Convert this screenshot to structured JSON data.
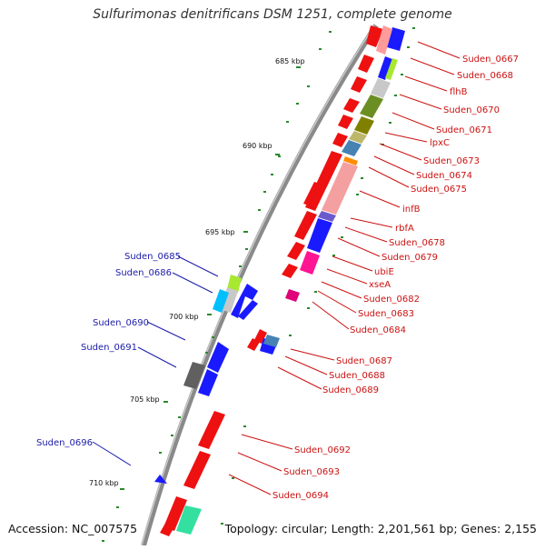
{
  "title": "Sulfurimonas denitrificans DSM 1251, complete genome",
  "accession": "Accession: NC_007575",
  "topology": "Topology: circular; Length: 2,201,561 bp; Genes: 2,155",
  "colors": {
    "right_label": "#cc1111",
    "left_label": "#1a1aaa",
    "backbone": "#808080",
    "tick": "#2a8a2a"
  },
  "ticks": [
    "685 kbp",
    "690 kbp",
    "695 kbp",
    "700 kbp",
    "705 kbp",
    "710 kbp"
  ],
  "right_labels": [
    "Suden_0667",
    "Suden_0668",
    "flhB",
    "Suden_0670",
    "Suden_0671",
    "lpxC",
    "Suden_0673",
    "Suden_0674",
    "Suden_0675",
    "infB",
    "rbfA",
    "Suden_0678",
    "Suden_0679",
    "ubiE",
    "xseA",
    "Suden_0682",
    "Suden_0683",
    "Suden_0684",
    "Suden_0687",
    "Suden_0688",
    "Suden_0689",
    "Suden_0692",
    "Suden_0693",
    "Suden_0694"
  ],
  "left_labels": [
    "Suden_0685",
    "Suden_0686",
    "Suden_0690",
    "Suden_0691",
    "Suden_0696"
  ]
}
